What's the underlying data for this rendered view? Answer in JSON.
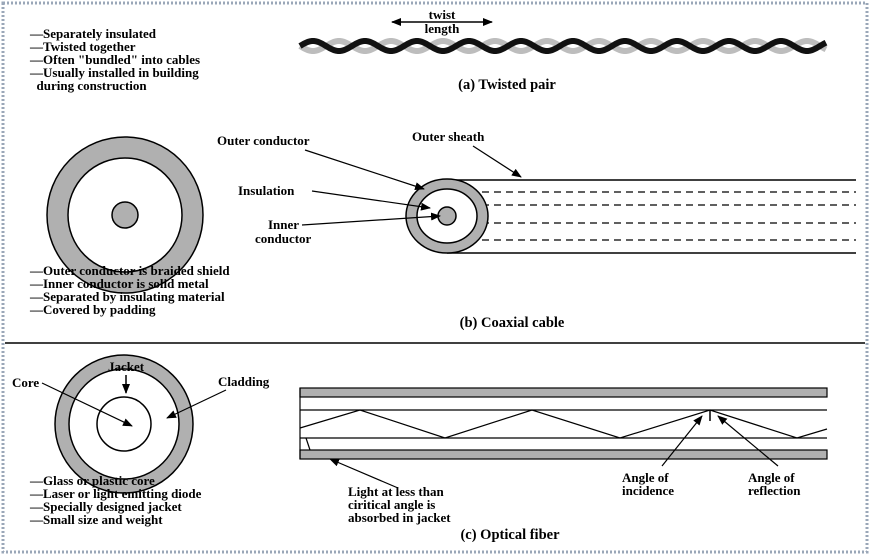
{
  "colors": {
    "background": "#ffffff",
    "border_dots": "#9aa7b8",
    "line": "#000000",
    "gray_fill": "#b0b0b0",
    "twisted_light": "#bdbdbd",
    "twisted_dark": "#111111"
  },
  "twisted_pair": {
    "notes": [
      "—Separately insulated",
      "—Twisted together",
      "—Often \"bundled\" into cables",
      "—Usually installed in building",
      "  during construction"
    ],
    "twist_label_1": "twist",
    "twist_label_2": "length",
    "caption": "(a) Twisted pair"
  },
  "coaxial": {
    "label_outer_conductor": "Outer conductor",
    "label_outer_sheath": "Outer sheath",
    "label_insulation": "Insulation",
    "label_inner_1": "Inner",
    "label_inner_2": "conductor",
    "notes": [
      "—Outer conductor is braided shield",
      "—Inner conductor is solid metal",
      "—Separated by insulating material",
      "—Covered by padding"
    ],
    "caption": "(b) Coaxial cable"
  },
  "optical": {
    "label_jacket": "Jacket",
    "label_core": "Core",
    "label_cladding": "Cladding",
    "notes": [
      "—Glass or plastic core",
      "—Laser or light emitting diode",
      "—Specially designed jacket",
      "—Small size and weight"
    ],
    "light_note": [
      "Light at less than",
      "ciritical angle is",
      "absorbed in jacket"
    ],
    "incidence": [
      "Angle of",
      "incidence"
    ],
    "reflection": [
      "Angle of",
      "reflection"
    ],
    "caption": "(c) Optical fiber"
  }
}
